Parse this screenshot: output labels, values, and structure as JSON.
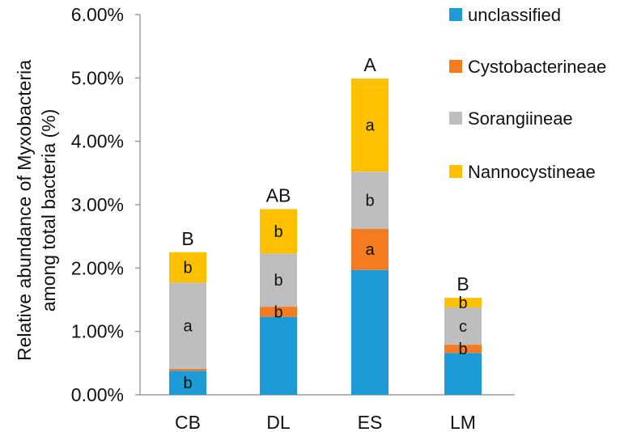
{
  "chart_data": {
    "type": "bar",
    "stacked": true,
    "categories": [
      "CB",
      "DL",
      "ES",
      "LM"
    ],
    "series": [
      {
        "name": "unclassified",
        "color": "#1e9bd7",
        "values": [
          0.38,
          1.23,
          1.97,
          0.66
        ],
        "labels": [
          "b",
          "",
          "",
          ""
        ]
      },
      {
        "name": "Cystobacterineae",
        "color": "#f47b20",
        "values": [
          0.03,
          0.16,
          0.65,
          0.13
        ],
        "labels": [
          "",
          "b",
          "a",
          "b"
        ]
      },
      {
        "name": "Sorangiineae",
        "color": "#bebebe",
        "values": [
          1.36,
          0.84,
          0.9,
          0.59
        ],
        "labels": [
          "a",
          "b",
          "b",
          "c"
        ]
      },
      {
        "name": "Nannocystineae",
        "color": "#ffc000",
        "values": [
          0.48,
          0.7,
          1.47,
          0.15
        ],
        "labels": [
          "b",
          "b",
          "a",
          "b"
        ]
      }
    ],
    "group_labels": [
      "B",
      "AB",
      "A",
      "B"
    ],
    "ylabel_lines": [
      "Relative abundance of Myxobacteria",
      "among total bacteria (%)"
    ],
    "yticks": [
      "0.00%",
      "1.00%",
      "2.00%",
      "3.00%",
      "4.00%",
      "5.00%",
      "6.00%"
    ],
    "ylim": [
      0,
      6
    ],
    "legend_position": "top-right",
    "legend_order": [
      "unclassified",
      "Cystobacterineae",
      "Sorangiineae",
      "Nannocystineae"
    ]
  }
}
